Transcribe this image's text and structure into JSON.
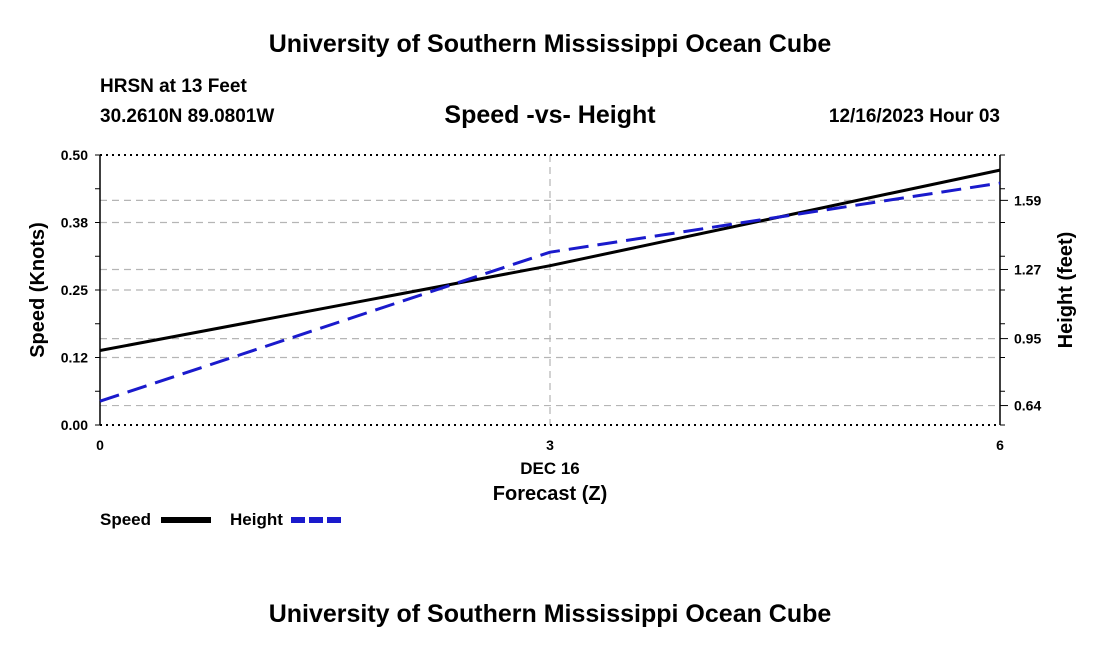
{
  "header": {
    "title": "University of Southern Mississippi Ocean Cube",
    "station": "HRSN at 13 Feet",
    "coords": "30.2610N  89.0801W",
    "subtitle": "Speed -vs- Height",
    "datetime": "12/16/2023 Hour 03"
  },
  "footer": {
    "title": "University of Southern Mississippi Ocean Cube"
  },
  "chart_data": {
    "type": "line",
    "xlabel_date": "DEC 16",
    "xlabel": "Forecast (Z)",
    "ylabel_left": "Speed (Knots)",
    "ylabel_right": "Height (feet)",
    "xlim": [
      0,
      6
    ],
    "ylim_left": [
      0,
      0.5
    ],
    "ylim_right": [
      0.55,
      1.8
    ],
    "x_ticks": [
      {
        "value": 0,
        "label": "0"
      },
      {
        "value": 3,
        "label": "3"
      },
      {
        "value": 6,
        "label": "6"
      }
    ],
    "y_left_ticks": [
      {
        "value": 0.0,
        "label": "0.00"
      },
      {
        "value": 0.125,
        "label": "0.12"
      },
      {
        "value": 0.25,
        "label": "0.25"
      },
      {
        "value": 0.375,
        "label": "0.38"
      },
      {
        "value": 0.5,
        "label": "0.50"
      }
    ],
    "y_right_ticks": [
      {
        "value": 0.64,
        "label": "0.64"
      },
      {
        "value": 0.95,
        "label": "0.95"
      },
      {
        "value": 1.27,
        "label": "1.27"
      },
      {
        "value": 1.59,
        "label": "1.59"
      }
    ],
    "series": [
      {
        "name": "Speed",
        "axis": "left",
        "color": "#000000",
        "dash": "solid",
        "points": [
          [
            0,
            0.138
          ],
          [
            3,
            0.295
          ],
          [
            6,
            0.472
          ]
        ]
      },
      {
        "name": "Height",
        "axis": "right",
        "color": "#1a1acc",
        "dash": "dashed",
        "points": [
          [
            0,
            0.66
          ],
          [
            3,
            1.35
          ],
          [
            6,
            1.67
          ]
        ]
      }
    ],
    "legend": [
      {
        "label": "Speed"
      },
      {
        "label": "Height"
      }
    ]
  }
}
